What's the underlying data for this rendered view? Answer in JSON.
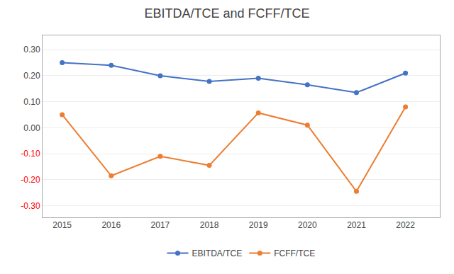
{
  "chart_data": {
    "type": "line",
    "title": "EBITDA/TCE and FCFF/TCE",
    "x": [
      2015,
      2016,
      2017,
      2018,
      2019,
      2020,
      2021,
      2022
    ],
    "series": [
      {
        "name": "EBITDA/TCE",
        "color": "#4472C4",
        "values": [
          0.25,
          0.24,
          0.2,
          0.178,
          0.19,
          0.165,
          0.135,
          0.21
        ]
      },
      {
        "name": "FCFF/TCE",
        "color": "#ED7D31",
        "values": [
          0.05,
          -0.185,
          -0.11,
          -0.145,
          0.057,
          0.01,
          -0.245,
          0.08
        ]
      }
    ],
    "xlim": [
      2014.6,
      2022.7
    ],
    "xticks": [
      2015,
      2016,
      2017,
      2018,
      2019,
      2020,
      2021,
      2022
    ],
    "ylim": [
      -0.345,
      0.355
    ],
    "yticks": [
      {
        "value": -0.3,
        "label": "-0.30"
      },
      {
        "value": -0.2,
        "label": "-0.20"
      },
      {
        "value": -0.1,
        "label": "-0.10"
      },
      {
        "value": 0,
        "label": "0.00"
      },
      {
        "value": 0.1,
        "label": "0.10"
      },
      {
        "value": 0.2,
        "label": "0.20"
      },
      {
        "value": 0.3,
        "label": "0.30"
      }
    ],
    "grid": true,
    "legend": "bottom",
    "marker": "circle"
  }
}
